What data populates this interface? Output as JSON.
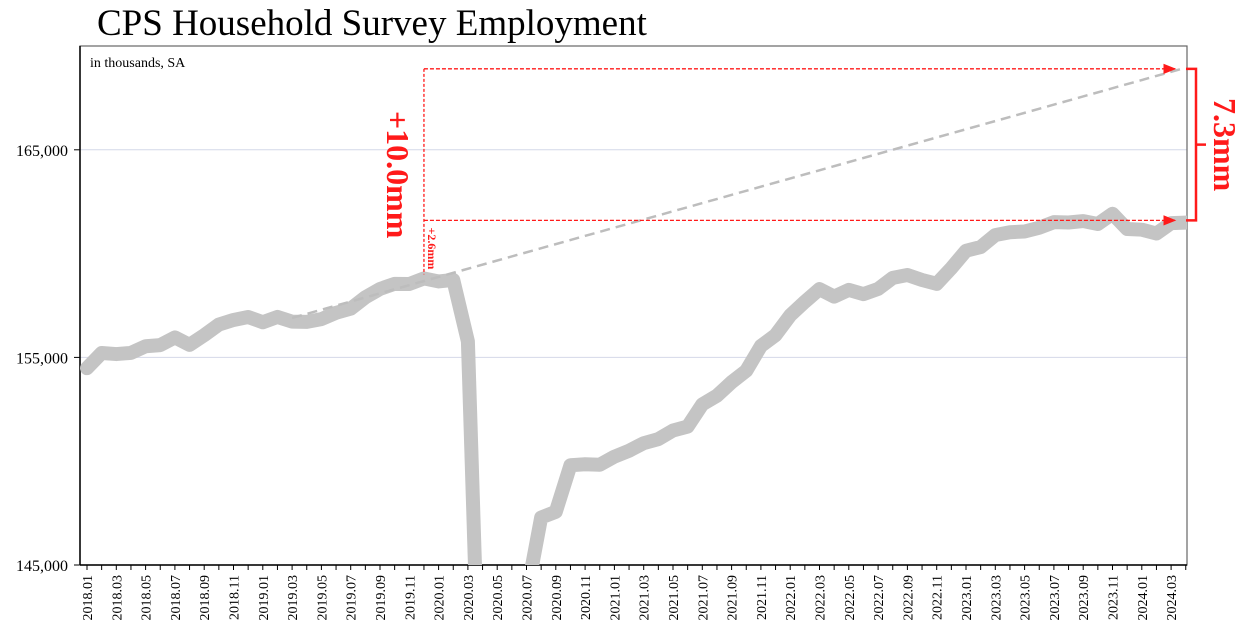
{
  "chart_data": {
    "type": "line",
    "title": "CPS Household Survey Employment",
    "subtitle": "in thousands, SA",
    "ylim": [
      145000,
      170000
    ],
    "yticks": [
      145000,
      155000,
      165000
    ],
    "ytick_labels": [
      "145,000",
      "155,000",
      "165,000"
    ],
    "grid": "horizontal",
    "start_month": "2018.01",
    "xtick_labels": [
      "2018.01",
      "2018.03",
      "2018.05",
      "2018.07",
      "2018.09",
      "2018.11",
      "2019.01",
      "2019.03",
      "2019.05",
      "2019.07",
      "2019.09",
      "2019.11",
      "2020.01",
      "2020.03",
      "2020.05",
      "2020.07",
      "2020.09",
      "2020.11",
      "2021.01",
      "2021.03",
      "2021.05",
      "2021.07",
      "2021.09",
      "2021.11",
      "2022.01",
      "2022.03",
      "2022.05",
      "2022.07",
      "2022.09",
      "2022.11",
      "2023.01",
      "2023.03",
      "2023.05",
      "2023.07",
      "2023.09",
      "2023.11",
      "2024.01",
      "2024.03"
    ],
    "series": [
      {
        "color": "#c4c4c4",
        "values": [
          154482,
          155213,
          155160,
          155216,
          155539,
          155592,
          155964,
          155604,
          156069,
          156582,
          156803,
          156945,
          156694,
          156949,
          156723,
          156709,
          156844,
          157148,
          157346,
          157895,
          158298,
          158544,
          158536,
          158803,
          158659,
          158732,
          155772,
          133403,
          137242,
          142182,
          143532,
          147288,
          147563,
          149806,
          149852,
          149830,
          150218,
          150505,
          150868,
          151065,
          151479,
          151668,
          152738,
          153156,
          153806,
          154357,
          155548,
          156075,
          157022,
          157679,
          158290,
          157929,
          158251,
          158048,
          158299,
          158830,
          158967,
          158727,
          158546,
          159301,
          160138,
          160315,
          160893,
          161031,
          161063,
          161246,
          161514,
          161497,
          161567,
          161428,
          161918,
          161183,
          161152,
          160968,
          161466,
          161491
        ]
      }
    ],
    "trend_line": {
      "from": [
        "2019.03",
        156900
      ],
      "to": [
        "2024.04",
        168900
      ],
      "color": "#bdbdbd",
      "style": "dashed"
    },
    "annotations": {
      "color": "#ff1a1a",
      "ref_month": "2019.12",
      "top_level": 168900,
      "actual_level": 161600,
      "pre_level": 158900,
      "gap_label": "7.3mm",
      "trend_gain_label": "+10.0mm",
      "actual_gain_label": "+2.6mm"
    }
  }
}
